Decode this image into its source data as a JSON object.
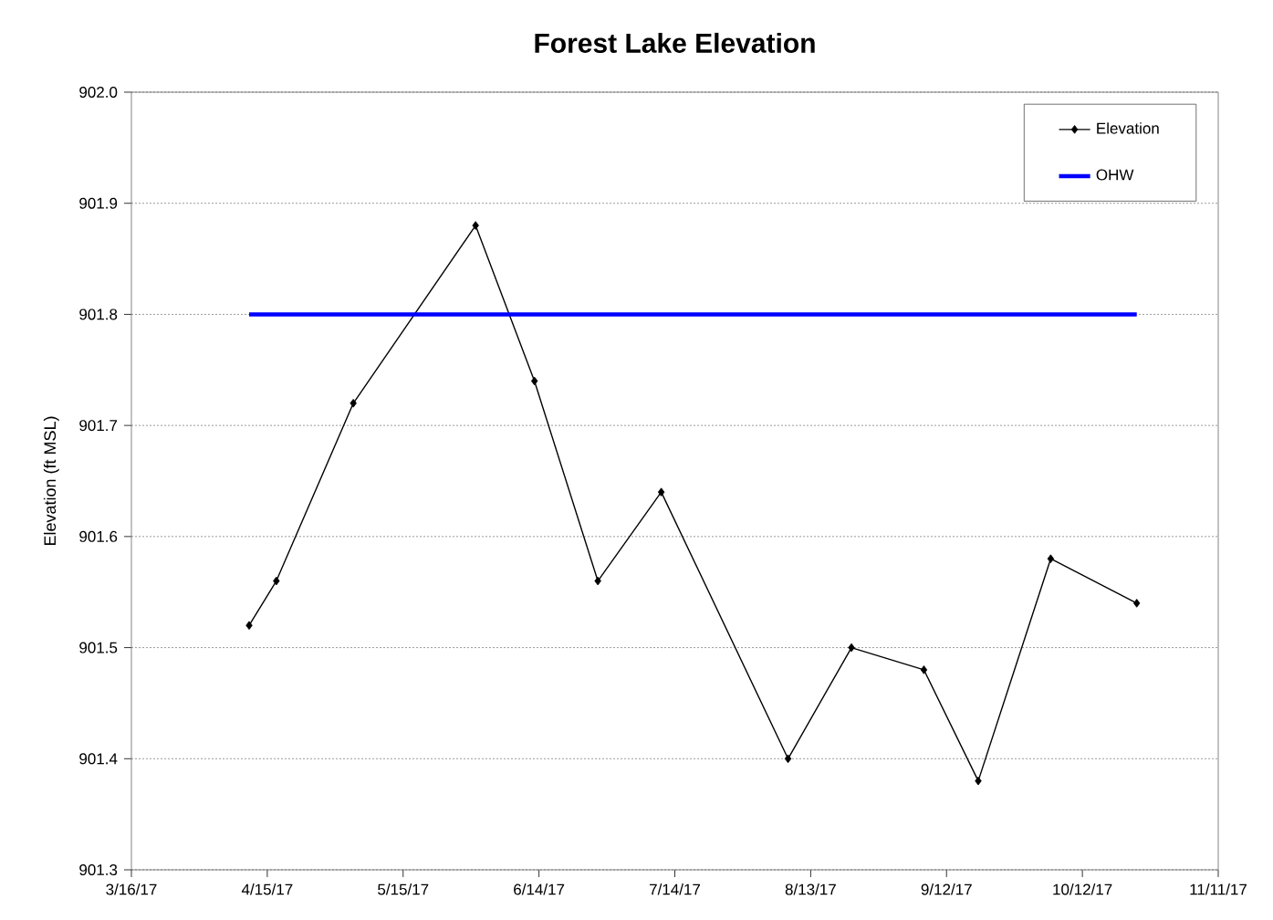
{
  "chart_data": {
    "type": "line",
    "title": "Forest Lake Elevation",
    "ylabel": "Elevation (ft MSL)",
    "series": [
      {
        "name": "Elevation",
        "color": "#000000",
        "marker": "diamond",
        "x": [
          "2017-04-11",
          "2017-04-17",
          "2017-05-04",
          "2017-05-31",
          "2017-06-13",
          "2017-06-27",
          "2017-07-11",
          "2017-08-08",
          "2017-08-22",
          "2017-09-07",
          "2017-09-19",
          "2017-10-05",
          "2017-10-24"
        ],
        "values": [
          901.52,
          901.56,
          901.72,
          901.88,
          901.74,
          901.56,
          901.64,
          901.4,
          901.5,
          901.48,
          901.38,
          901.58,
          901.54
        ]
      },
      {
        "name": "OHW",
        "color": "#0000ff",
        "marker": "none",
        "x": [
          "2017-04-11",
          "2017-10-24"
        ],
        "values": [
          901.8,
          901.8
        ]
      }
    ],
    "xlim": [
      "2017-03-16",
      "2017-11-11"
    ],
    "xticks": [
      {
        "value": "2017-03-16",
        "label": "3/16/17"
      },
      {
        "value": "2017-04-15",
        "label": "4/15/17"
      },
      {
        "value": "2017-05-15",
        "label": "5/15/17"
      },
      {
        "value": "2017-06-14",
        "label": "6/14/17"
      },
      {
        "value": "2017-07-14",
        "label": "7/14/17"
      },
      {
        "value": "2017-08-13",
        "label": "8/13/17"
      },
      {
        "value": "2017-09-12",
        "label": "9/12/17"
      },
      {
        "value": "2017-10-12",
        "label": "10/12/17"
      },
      {
        "value": "2017-11-11",
        "label": "11/11/17"
      }
    ],
    "ylim": [
      901.3,
      902.0
    ],
    "yticks": [
      901.3,
      901.4,
      901.5,
      901.6,
      901.7,
      901.8,
      901.9,
      {
        "value": 902.0,
        "label": "902.0"
      }
    ],
    "grid": "y",
    "legend": "top right"
  }
}
